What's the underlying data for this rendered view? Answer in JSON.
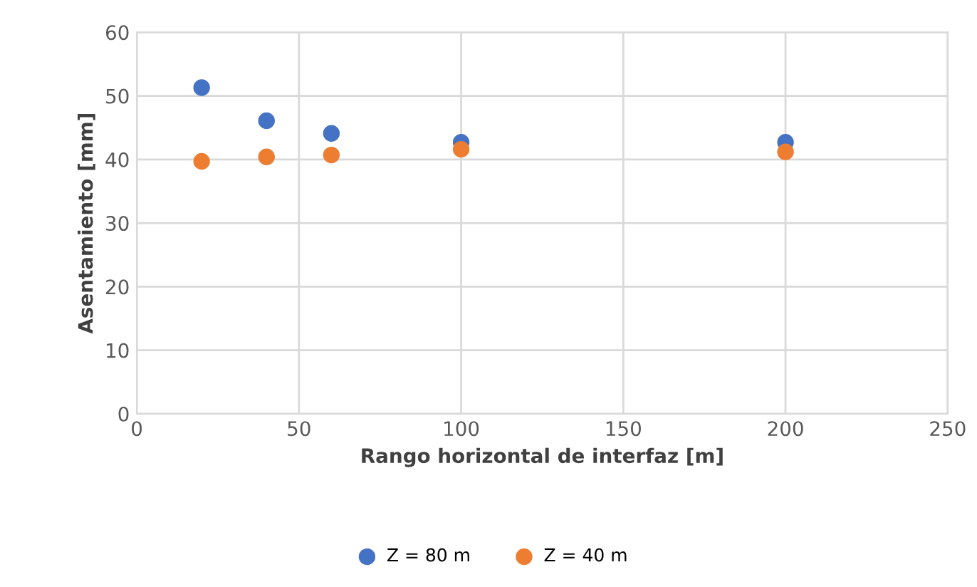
{
  "chart_data": {
    "type": "scatter",
    "xlabel": "Rango horizontal de interfaz [m]",
    "ylabel": "Asentamiento [mm]",
    "x": [
      20,
      40,
      60,
      100,
      200
    ],
    "series": [
      {
        "name": "Z = 80 m",
        "color": "#4472c4",
        "values": [
          51.3,
          46.1,
          44.1,
          42.7,
          42.7
        ]
      },
      {
        "name": "Z = 40 m",
        "color": "#ed7d31",
        "values": [
          39.7,
          40.4,
          40.7,
          41.6,
          41.2
        ]
      }
    ],
    "xlim": [
      0,
      250
    ],
    "xticks": [
      0,
      50,
      100,
      150,
      200,
      250
    ],
    "ylim": [
      0,
      60
    ],
    "yticks": [
      0,
      10,
      20,
      30,
      40,
      50,
      60
    ],
    "grid": true,
    "legend": "bottom",
    "marker": "circle"
  }
}
